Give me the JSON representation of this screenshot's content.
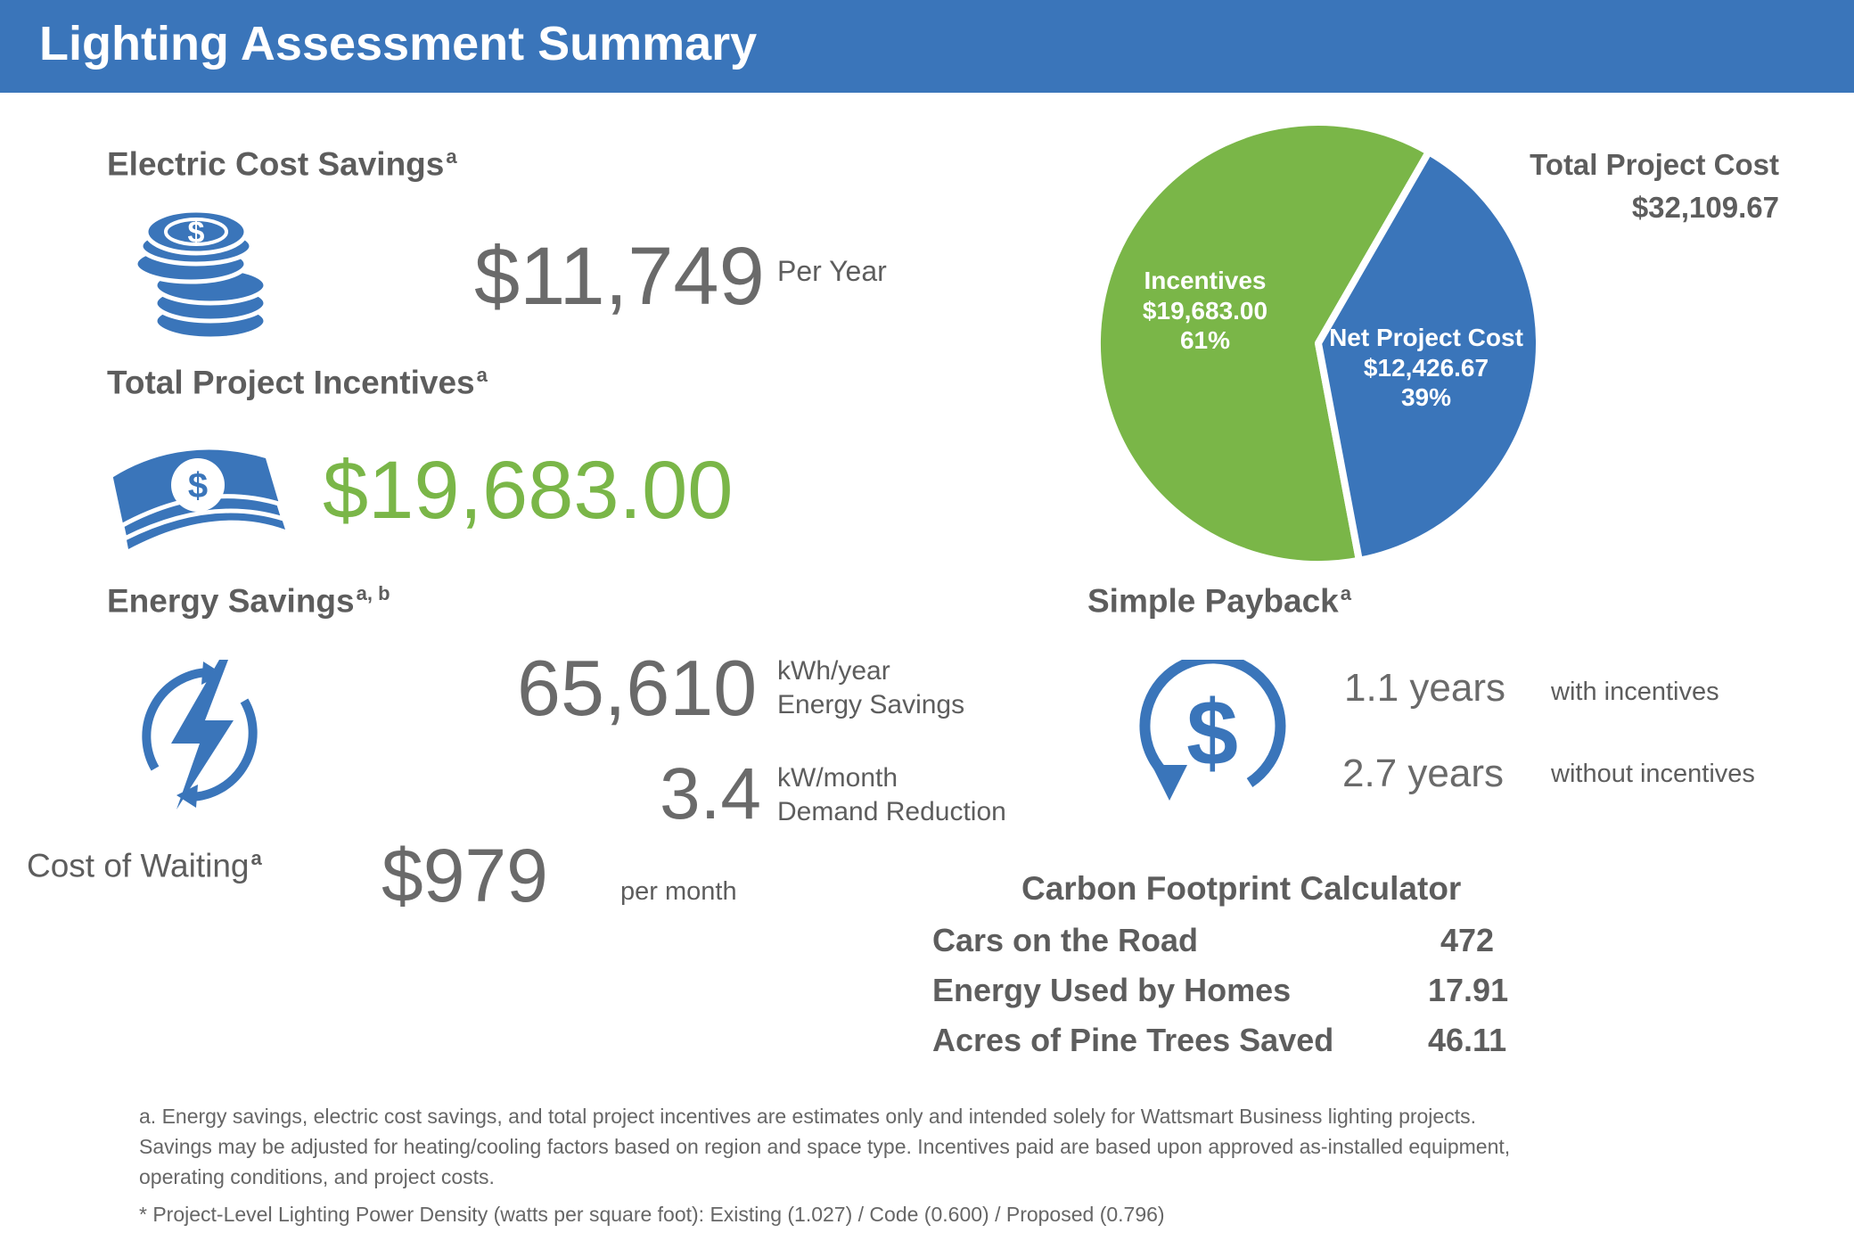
{
  "header": {
    "title": "Lighting Assessment Summary"
  },
  "electric": {
    "title": "Electric Cost Savings",
    "sup": "a",
    "value": "$11,749",
    "unit": "Per Year",
    "icon": "coins-icon"
  },
  "incentives": {
    "title": "Total Project Incentives",
    "sup": "a",
    "value": "$19,683.00",
    "icon": "money-icon",
    "value_color": "#7ab648"
  },
  "energy": {
    "title": "Energy Savings",
    "sup": "a, b",
    "icon": "lightning-icon",
    "kwh_value": "65,610",
    "kwh_unit": "kWh/year",
    "kwh_label": "Energy Savings",
    "kw_value": "3.4",
    "kw_unit": "kW/month",
    "kw_label": "Demand Reduction"
  },
  "waiting": {
    "title": "Cost of Waiting",
    "sup": "a",
    "value": "$979",
    "unit": "per month"
  },
  "total_cost": {
    "label": "Total Project Cost",
    "value": "$32,109.67"
  },
  "payback": {
    "title": "Simple Payback",
    "sup": "a",
    "icon": "dollar-cycle-icon",
    "with_value": "1.1 years",
    "with_label": "with incentives",
    "without_value": "2.7 years",
    "without_label": "without incentives"
  },
  "carbon": {
    "title": "Carbon Footprint Calculator",
    "rows": [
      {
        "label": "Cars on the Road",
        "value": "472"
      },
      {
        "label": "Energy Used by Homes",
        "value": "17.91"
      },
      {
        "label": "Acres of Pine Trees Saved",
        "value": "46.11"
      }
    ]
  },
  "notes": {
    "line1": "a. Energy savings, electric cost savings, and total project incentives are estimates only and intended solely for Wattsmart Business lighting projects.",
    "line2": "Savings may be adjusted for heating/cooling factors based on region and space type. Incentives paid are based upon approved as-installed equipment,",
    "line3": "operating conditions, and project costs.",
    "line4": "* Project-Level Lighting Power Density (watts per square foot): Existing (1.027)  / Code (0.600)  / Proposed (0.796)"
  },
  "colors": {
    "header_bg": "#3a75ba",
    "blue": "#3a75ba",
    "green": "#7ab648",
    "text": "#5d5d5d"
  },
  "chart_data": {
    "type": "pie",
    "title": "",
    "slices": [
      {
        "name": "Incentives",
        "value": 19683.0,
        "value_label": "$19,683.00",
        "percent": 61,
        "percent_label": "61%",
        "color": "#7ab648"
      },
      {
        "name": "Net Project Cost",
        "value": 12426.67,
        "value_label": "$12,426.67",
        "percent": 39,
        "percent_label": "39%",
        "color": "#3a75ba"
      }
    ],
    "start_angle_deg": 30,
    "direction": "counterclockwise-for-first-slice"
  }
}
